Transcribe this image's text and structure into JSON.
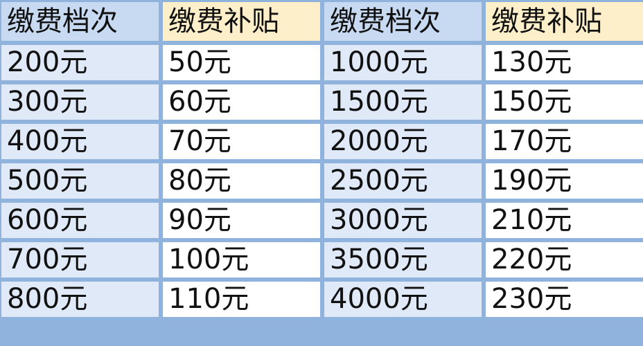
{
  "headers": [
    "缴费档次",
    "缴费补贴",
    "缴费档次",
    "缴费补贴"
  ],
  "rows": [
    [
      "200元",
      "50元",
      "1000元",
      "130元"
    ],
    [
      "300元",
      "60元",
      "1500元",
      "150元"
    ],
    [
      "400元",
      "70元",
      "2000元",
      "170元"
    ],
    [
      "500元",
      "80元",
      "2500元",
      "190元"
    ],
    [
      "600元",
      "90元",
      "3000元",
      "210元"
    ],
    [
      "700元",
      "100元",
      "3500元",
      "220元"
    ],
    [
      "800元",
      "110元",
      "4000元",
      "230元"
    ]
  ],
  "colors": {
    "border": "#8fb3dd",
    "header_blue": "#c7daf1",
    "header_yellow": "#fcefc9",
    "cell_blue": "#dfe9f7",
    "cell_white": "#ffffff"
  }
}
